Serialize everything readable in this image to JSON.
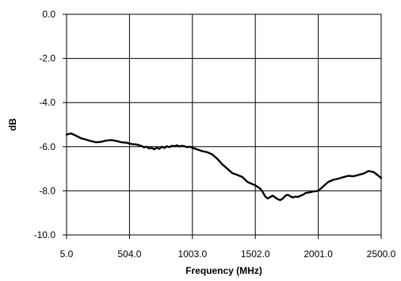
{
  "chart_data": {
    "type": "line",
    "title": "",
    "xlabel": "Frequency (MHz)",
    "ylabel": "dB",
    "xlim": [
      5.0,
      2500.0
    ],
    "ylim": [
      -10.0,
      0.0
    ],
    "x_ticks": [
      "5.0",
      "504.0",
      "1003.0",
      "1502.0",
      "2001.0",
      "2500.0"
    ],
    "x_tick_values": [
      5.0,
      504.0,
      1003.0,
      1502.0,
      2001.0,
      2500.0
    ],
    "y_ticks": [
      "0.0",
      "-2.0",
      "-4.0",
      "-6.0",
      "-8.0",
      "-10.0"
    ],
    "y_tick_values": [
      0.0,
      -2.0,
      -4.0,
      -6.0,
      -8.0,
      -10.0
    ],
    "grid": true,
    "series": [
      {
        "color": "#000000",
        "x": [
          5,
          40,
          80,
          120,
          160,
          200,
          240,
          280,
          320,
          360,
          400,
          440,
          480,
          520,
          560,
          600,
          620,
          640,
          660,
          680,
          700,
          720,
          740,
          760,
          780,
          800,
          820,
          840,
          860,
          880,
          900,
          920,
          940,
          960,
          980,
          1003,
          1040,
          1080,
          1120,
          1160,
          1200,
          1240,
          1280,
          1320,
          1360,
          1400,
          1440,
          1480,
          1502,
          1540,
          1560,
          1580,
          1600,
          1620,
          1640,
          1660,
          1680,
          1700,
          1720,
          1740,
          1760,
          1780,
          1800,
          1820,
          1840,
          1860,
          1880,
          1900,
          1920,
          1940,
          1960,
          1980,
          2001,
          2040,
          2080,
          2120,
          2160,
          2200,
          2240,
          2280,
          2320,
          2360,
          2400,
          2440,
          2470,
          2500
        ],
        "y": [
          -5.45,
          -5.4,
          -5.5,
          -5.62,
          -5.68,
          -5.75,
          -5.8,
          -5.78,
          -5.72,
          -5.7,
          -5.74,
          -5.8,
          -5.82,
          -5.88,
          -5.9,
          -5.97,
          -6.03,
          -6.0,
          -6.08,
          -6.05,
          -6.12,
          -6.04,
          -6.1,
          -6.0,
          -6.06,
          -5.98,
          -6.02,
          -5.96,
          -5.98,
          -5.94,
          -5.99,
          -5.96,
          -5.98,
          -6.02,
          -6.0,
          -6.05,
          -6.12,
          -6.2,
          -6.25,
          -6.35,
          -6.55,
          -6.8,
          -7.0,
          -7.2,
          -7.28,
          -7.38,
          -7.6,
          -7.7,
          -7.75,
          -7.9,
          -8.05,
          -8.25,
          -8.35,
          -8.28,
          -8.22,
          -8.3,
          -8.38,
          -8.42,
          -8.35,
          -8.22,
          -8.18,
          -8.25,
          -8.3,
          -8.26,
          -8.28,
          -8.22,
          -8.18,
          -8.1,
          -8.08,
          -8.06,
          -8.03,
          -8.02,
          -8.0,
          -7.8,
          -7.6,
          -7.5,
          -7.45,
          -7.38,
          -7.32,
          -7.34,
          -7.28,
          -7.22,
          -7.1,
          -7.15,
          -7.28,
          -7.42
        ]
      }
    ]
  }
}
